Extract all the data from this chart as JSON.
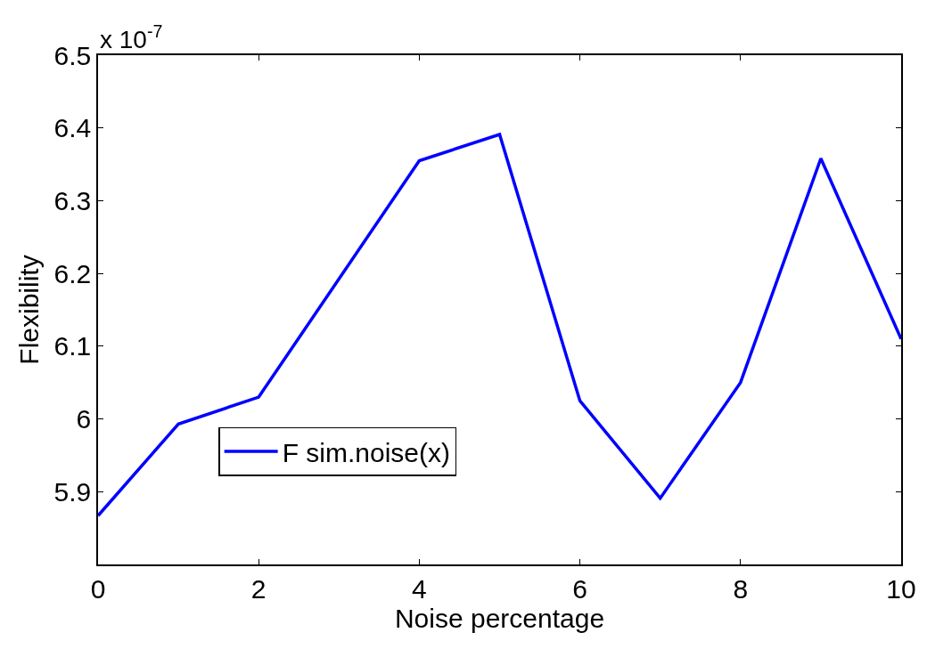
{
  "chart_data": {
    "type": "line",
    "xlabel": "Noise percentage",
    "ylabel": "Flexibility",
    "annotations": [
      "x 10$^{-7}$"
    ],
    "x": [
      0,
      1,
      2,
      4,
      5,
      6,
      7,
      8,
      9,
      10
    ],
    "series": [
      {
        "name": "F sim.noise(x)",
        "color": "#0000ff",
        "values": [
          5.867,
          5.993,
          6.03,
          6.355,
          6.391,
          6.025,
          5.891,
          6.05,
          6.358,
          6.11
        ]
      }
    ],
    "xlim": [
      0,
      10
    ],
    "xticks": [
      0,
      2,
      4,
      6,
      8,
      10
    ],
    "ylim": [
      5.8,
      6.5
    ],
    "yticks": [
      5.9,
      {
        "value": 6,
        "label": "6"
      },
      6.1,
      6.2,
      6.3,
      6.4,
      6.5
    ],
    "legend": "bottom left",
    "marker": "none",
    "line_style": "solid"
  }
}
